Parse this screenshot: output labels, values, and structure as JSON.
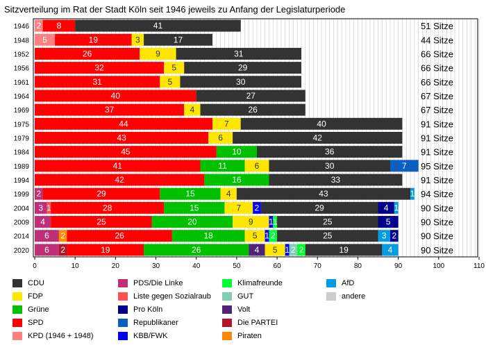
{
  "title": "Sitzverteilung im Rat der Stadt Köln seit 1946 jeweils zu Anfang der Legislaturperiode",
  "colors": {
    "CDU": "#333333",
    "FDP": "#ffe600",
    "Grüne": "#00c000",
    "SPD": "#ff0000",
    "KPD": "#ff8080",
    "PDS/Die Linke": "#be3075",
    "Liste gegen Sozialraub": "#ff5050",
    "Pro Köln": "#00008b",
    "Republikaner": "#0b5fc0",
    "KBB/FWK": "#0000ff",
    "Klimafreunde": "#00ff30",
    "GUT": "#7fcfb0",
    "Volt": "#502379",
    "Die PARTEI": "#b5152b",
    "Piraten": "#ff8800",
    "AfD": "#009ee0",
    "andere": "#cccccc"
  },
  "legend": [
    {
      "key": "CDU",
      "label": "CDU"
    },
    {
      "key": "FDP",
      "label": "FDP"
    },
    {
      "key": "Grüne",
      "label": "Grüne"
    },
    {
      "key": "SPD",
      "label": "SPD"
    },
    {
      "key": "KPD",
      "label": "KPD (1946 + 1948)"
    },
    {
      "key": "PDS/Die Linke",
      "label": "PDS/Die Linke"
    },
    {
      "key": "Liste gegen Sozialraub",
      "label": "Liste gegen Sozialraub"
    },
    {
      "key": "Grüne",
      "label": "Grüne"
    },
    {
      "key": "Pro Köln",
      "label": "Pro Köln"
    },
    {
      "key": "Republikaner",
      "label": "Republikaner"
    },
    {
      "key": "KBB/FWK",
      "label": "KBB/FWK"
    },
    {
      "key": "Klimafreunde",
      "label": "Klimafreunde"
    },
    {
      "key": "GUT",
      "label": "GUT"
    },
    {
      "key": "Volt",
      "label": "Volt"
    },
    {
      "key": "Die PARTEI",
      "label": "Die PARTEI"
    },
    {
      "key": "Piraten",
      "label": "Piraten"
    },
    {
      "key": "AfD",
      "label": "AfD"
    },
    {
      "key": "andere",
      "label": "andere"
    }
  ],
  "chart_data": {
    "type": "bar",
    "orientation": "horizontal",
    "stacked": true,
    "title": "Sitzverteilung im Rat der Stadt Köln seit 1946 jeweils zu Anfang der Legislaturperiode",
    "xlim": [
      0,
      110
    ],
    "xticks": [
      0,
      10,
      20,
      30,
      40,
      50,
      60,
      70,
      80,
      90,
      100,
      110
    ],
    "grid": "vertical lines every 1 seat",
    "rows": [
      {
        "year": "1946",
        "total_label": "51 Sitze",
        "segments": [
          [
            "KPD",
            2
          ],
          [
            "SPD",
            8
          ],
          [
            "CDU",
            41
          ]
        ]
      },
      {
        "year": "1948",
        "total_label": "44 Sitze",
        "segments": [
          [
            "KPD",
            5
          ],
          [
            "SPD",
            19
          ],
          [
            "FDP",
            3
          ],
          [
            "CDU",
            17
          ]
        ]
      },
      {
        "year": "1952",
        "total_label": "66 Sitze",
        "segments": [
          [
            "SPD",
            26
          ],
          [
            "FDP",
            9
          ],
          [
            "CDU",
            31
          ]
        ]
      },
      {
        "year": "1956",
        "total_label": "66 Sitze",
        "segments": [
          [
            "SPD",
            32
          ],
          [
            "FDP",
            5
          ],
          [
            "CDU",
            29
          ]
        ]
      },
      {
        "year": "1961",
        "total_label": "66 Sitze",
        "segments": [
          [
            "SPD",
            31
          ],
          [
            "FDP",
            5
          ],
          [
            "CDU",
            30
          ]
        ]
      },
      {
        "year": "1964",
        "total_label": "67 Sitze",
        "segments": [
          [
            "SPD",
            40
          ],
          [
            "CDU",
            27
          ]
        ]
      },
      {
        "year": "1969",
        "total_label": "67 Sitze",
        "segments": [
          [
            "SPD",
            37
          ],
          [
            "FDP",
            4
          ],
          [
            "CDU",
            26
          ]
        ]
      },
      {
        "year": "1975",
        "total_label": "91 Sitze",
        "segments": [
          [
            "SPD",
            44
          ],
          [
            "FDP",
            7
          ],
          [
            "CDU",
            40
          ]
        ]
      },
      {
        "year": "1979",
        "total_label": "91 Sitze",
        "segments": [
          [
            "SPD",
            43
          ],
          [
            "FDP",
            6
          ],
          [
            "CDU",
            42
          ]
        ]
      },
      {
        "year": "1984",
        "total_label": "91 Sitze",
        "segments": [
          [
            "SPD",
            45
          ],
          [
            "Grüne",
            10
          ],
          [
            "CDU",
            36
          ]
        ]
      },
      {
        "year": "1989",
        "total_label": "95 Sitze",
        "segments": [
          [
            "SPD",
            41
          ],
          [
            "Grüne",
            11
          ],
          [
            "FDP",
            6
          ],
          [
            "CDU",
            30
          ],
          [
            "Republikaner",
            7
          ]
        ]
      },
      {
        "year": "1994",
        "total_label": "91 Sitze",
        "segments": [
          [
            "SPD",
            42
          ],
          [
            "Grüne",
            16
          ],
          [
            "CDU",
            33
          ]
        ]
      },
      {
        "year": "1999",
        "total_label": "94 Sitze",
        "segments": [
          [
            "PDS/Die Linke",
            2
          ],
          [
            "SPD",
            29
          ],
          [
            "Grüne",
            15
          ],
          [
            "FDP",
            4
          ],
          [
            "CDU",
            43
          ],
          [
            "AfD",
            1
          ]
        ]
      },
      {
        "year": "2004",
        "total_label": "90 Sitze",
        "segments": [
          [
            "PDS/Die Linke",
            3
          ],
          [
            "Liste gegen Sozialraub",
            1
          ],
          [
            "SPD",
            28
          ],
          [
            "Grüne",
            15
          ],
          [
            "FDP",
            7
          ],
          [
            "KBB/FWK",
            2
          ],
          [
            "CDU",
            29
          ],
          [
            "Pro Köln",
            4
          ],
          [
            "AfD",
            1
          ]
        ]
      },
      {
        "year": "2009",
        "total_label": "90 Sitze",
        "segments": [
          [
            "PDS/Die Linke",
            4
          ],
          [
            "SPD",
            25
          ],
          [
            "Grüne",
            20
          ],
          [
            "FDP",
            9
          ],
          [
            "KBB/FWK",
            1
          ],
          [
            "Klimafreunde",
            1
          ],
          [
            "CDU",
            25
          ],
          [
            "Pro Köln",
            5
          ]
        ]
      },
      {
        "year": "2014",
        "total_label": "90 Sitze",
        "segments": [
          [
            "PDS/Die Linke",
            6
          ],
          [
            "Piraten",
            2
          ],
          [
            "SPD",
            26
          ],
          [
            "Grüne",
            18
          ],
          [
            "FDP",
            5
          ],
          [
            "KBB/FWK",
            1
          ],
          [
            "Klimafreunde",
            2
          ],
          [
            "CDU",
            25
          ],
          [
            "AfD",
            3
          ],
          [
            "Pro Köln",
            2
          ]
        ]
      },
      {
        "year": "2020",
        "total_label": "90 Sitze",
        "segments": [
          [
            "PDS/Die Linke",
            6
          ],
          [
            "Die PARTEI",
            2
          ],
          [
            "SPD",
            19
          ],
          [
            "Grüne",
            26
          ],
          [
            "Volt",
            4
          ],
          [
            "FDP",
            5
          ],
          [
            "KBB/FWK",
            1
          ],
          [
            "GUT",
            2
          ],
          [
            "Klimafreunde",
            2
          ],
          [
            "CDU",
            19
          ],
          [
            "AfD",
            4
          ]
        ]
      }
    ]
  }
}
